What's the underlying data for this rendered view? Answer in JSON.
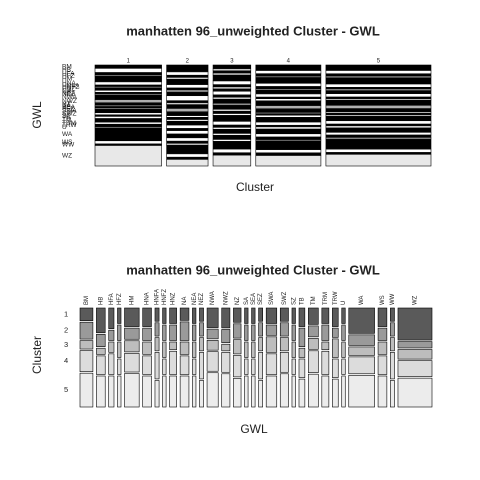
{
  "chart_data": [
    {
      "type": "mosaic",
      "title": "manhatten 96_unweighted Cluster - GWL",
      "xlabel": "Cluster",
      "ylabel": "GWL",
      "x_categories": [
        "1",
        "2",
        "3",
        "4",
        "5"
      ],
      "y_categories": [
        "BM",
        "HB",
        "HFA",
        "HFZ",
        "HM",
        "HNA",
        "HNFA",
        "HNFZ",
        "HNZ",
        "NA",
        "NEA",
        "NEZ",
        "NWA",
        "NWZ",
        "NZ",
        "SA",
        "SEA",
        "SEZ",
        "SWA",
        "SWZ",
        "SZ",
        "TB",
        "TM",
        "TRM",
        "TRW",
        "U",
        "WA",
        "WS",
        "WW",
        "WZ"
      ],
      "colors": [
        "#000000",
        "#ffffff",
        "#000000",
        "#ffffff",
        "#000000",
        "#ffffff",
        "#000000",
        "#ffffff",
        "#000000",
        "#ffffff",
        "#000000",
        "#ffffff",
        "#000000",
        "#b0b0b0",
        "#000000",
        "#ffffff",
        "#000000",
        "#ffffff",
        "#000000",
        "#ffffff",
        "#000000",
        "#ffffff",
        "#000000",
        "#ffffff",
        "#000000",
        "#ffffff",
        "#000000",
        "#ffffff",
        "#000000",
        "#e8e8e8"
      ],
      "values": [
        [
          3,
          4,
          2,
          1,
          5,
          3,
          1,
          1,
          2,
          2,
          1,
          1,
          4,
          3,
          2,
          1,
          1,
          1,
          3,
          2,
          1,
          2,
          3,
          2,
          2,
          1,
          12,
          3,
          1,
          20
        ],
        [
          4,
          2,
          1,
          1,
          3,
          2,
          1,
          1,
          2,
          3,
          1,
          1,
          2,
          2,
          2,
          1,
          1,
          1,
          2,
          2,
          1,
          2,
          2,
          2,
          1,
          1,
          5,
          2,
          1,
          4
        ],
        [
          2,
          1,
          1,
          1,
          3,
          2,
          1,
          1,
          1,
          2,
          1,
          1,
          2,
          1,
          2,
          1,
          1,
          1,
          3,
          2,
          1,
          1,
          2,
          1,
          2,
          1,
          4,
          2,
          1,
          6
        ],
        [
          5,
          3,
          2,
          1,
          5,
          3,
          2,
          1,
          3,
          3,
          1,
          2,
          4,
          3,
          3,
          1,
          1,
          2,
          4,
          3,
          1,
          2,
          4,
          3,
          2,
          1,
          8,
          3,
          2,
          10
        ],
        [
          8,
          5,
          3,
          2,
          9,
          5,
          2,
          2,
          4,
          5,
          2,
          2,
          7,
          5,
          4,
          2,
          2,
          2,
          6,
          5,
          2,
          3,
          6,
          4,
          3,
          2,
          15,
          5,
          2,
          18
        ]
      ]
    },
    {
      "type": "mosaic",
      "title": "manhatten 96_unweighted Cluster - GWL",
      "xlabel": "GWL",
      "ylabel": "Cluster",
      "x_categories": [
        "BM",
        "HB",
        "HFA",
        "HFZ",
        "HM",
        "HNA",
        "HNFA",
        "HNFZ",
        "HNZ",
        "NA",
        "NEA",
        "NEZ",
        "NWA",
        "NWZ",
        "NZ",
        "SA",
        "SEA",
        "SEZ",
        "SWA",
        "SWZ",
        "SZ",
        "TB",
        "TM",
        "TRM",
        "TRW",
        "U",
        "WA",
        "WS",
        "WW",
        "WZ"
      ],
      "y_categories": [
        "1",
        "2",
        "3",
        "4",
        "5"
      ],
      "colors": [
        "#5a5a5a",
        "#9a9a9a",
        "#bdbdbd",
        "#dcdcdc",
        "#ececec"
      ],
      "values": [
        [
          3,
          4,
          2,
          5,
          8
        ],
        [
          4,
          2,
          1,
          3,
          5
        ],
        [
          2,
          1,
          1,
          2,
          3
        ],
        [
          1,
          1,
          1,
          1,
          2
        ],
        [
          5,
          3,
          3,
          5,
          9
        ],
        [
          3,
          2,
          2,
          3,
          5
        ],
        [
          1,
          1,
          1,
          2,
          2
        ],
        [
          1,
          1,
          1,
          1,
          2
        ],
        [
          2,
          2,
          1,
          3,
          4
        ],
        [
          2,
          3,
          2,
          3,
          5
        ],
        [
          1,
          1,
          1,
          1,
          2
        ],
        [
          1,
          1,
          1,
          2,
          2
        ],
        [
          4,
          2,
          2,
          4,
          7
        ],
        [
          3,
          2,
          1,
          3,
          5
        ],
        [
          2,
          2,
          2,
          3,
          4
        ],
        [
          1,
          1,
          1,
          1,
          2
        ],
        [
          1,
          1,
          1,
          1,
          2
        ],
        [
          1,
          1,
          1,
          2,
          2
        ],
        [
          3,
          2,
          3,
          4,
          6
        ],
        [
          2,
          2,
          2,
          3,
          5
        ],
        [
          1,
          1,
          1,
          1,
          2
        ],
        [
          2,
          2,
          1,
          2,
          3
        ],
        [
          3,
          2,
          2,
          4,
          6
        ],
        [
          2,
          2,
          1,
          3,
          4
        ],
        [
          2,
          1,
          2,
          2,
          3
        ],
        [
          1,
          1,
          1,
          1,
          2
        ],
        [
          12,
          5,
          4,
          8,
          15
        ],
        [
          3,
          2,
          2,
          3,
          5
        ],
        [
          1,
          1,
          1,
          2,
          2
        ],
        [
          20,
          4,
          6,
          10,
          18
        ]
      ]
    }
  ]
}
